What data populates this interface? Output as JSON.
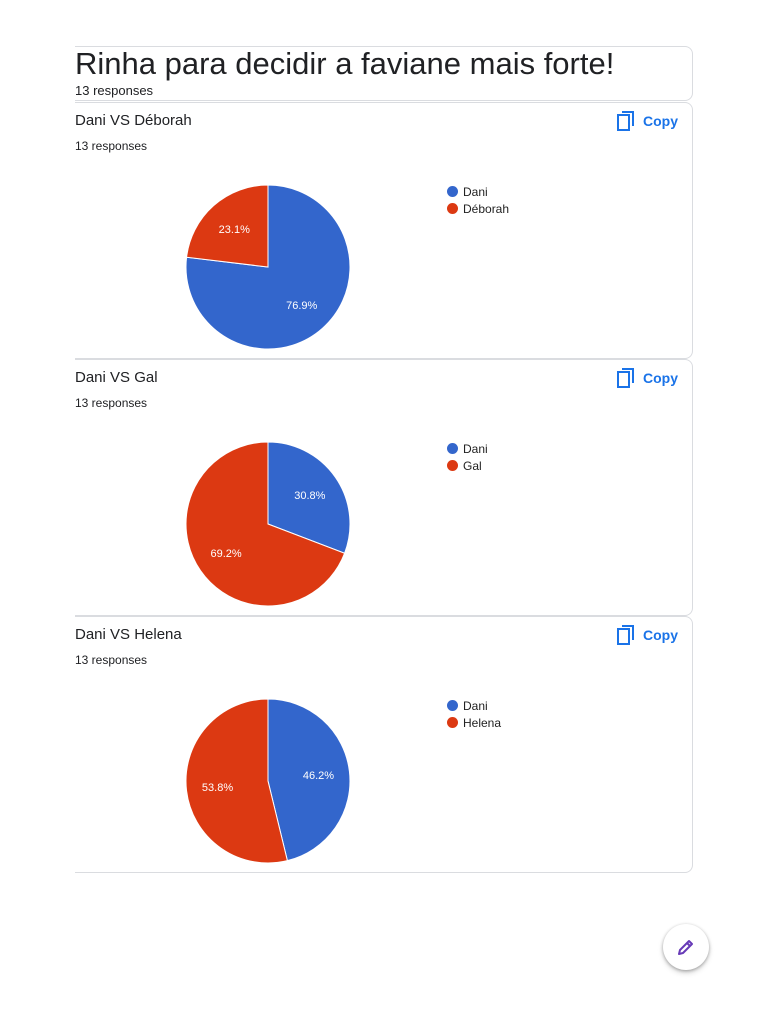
{
  "form": {
    "title": "Rinha para decidir a faviane mais forte!",
    "responses": "13 responses"
  },
  "colors": {
    "blue": "#3366cc",
    "red": "#dc3912",
    "accent": "#1a73e8",
    "fab_icon": "#673ab7"
  },
  "icons": {
    "copy": "copy-icon",
    "edit": "pencil-icon"
  },
  "questions": [
    {
      "title": "Dani VS Déborah",
      "responses": "13 responses",
      "copy_label": "Copy",
      "legend": [
        {
          "label": "Dani",
          "color": "#3366cc"
        },
        {
          "label": "Déborah",
          "color": "#dc3912"
        }
      ]
    },
    {
      "title": "Dani VS Gal",
      "responses": "13 responses",
      "copy_label": "Copy",
      "legend": [
        {
          "label": "Dani",
          "color": "#3366cc"
        },
        {
          "label": "Gal",
          "color": "#dc3912"
        }
      ]
    },
    {
      "title": "Dani VS Helena",
      "responses": "13 responses",
      "copy_label": "Copy",
      "legend": [
        {
          "label": "Dani",
          "color": "#3366cc"
        },
        {
          "label": "Helena",
          "color": "#dc3912"
        }
      ]
    }
  ],
  "chart_data": [
    {
      "type": "pie",
      "title": "Dani VS Déborah",
      "categories": [
        "Dani",
        "Déborah"
      ],
      "values": [
        76.9,
        23.1
      ],
      "labels": [
        "76.9%",
        "23.1%"
      ],
      "colors": [
        "#3366cc",
        "#dc3912"
      ],
      "legend": "right"
    },
    {
      "type": "pie",
      "title": "Dani VS Gal",
      "categories": [
        "Dani",
        "Gal"
      ],
      "values": [
        30.8,
        69.2
      ],
      "labels": [
        "30.8%",
        "69.2%"
      ],
      "colors": [
        "#3366cc",
        "#dc3912"
      ],
      "legend": "right"
    },
    {
      "type": "pie",
      "title": "Dani VS Helena",
      "categories": [
        "Dani",
        "Helena"
      ],
      "values": [
        46.2,
        53.8
      ],
      "labels": [
        "46.2%",
        "53.8%"
      ],
      "colors": [
        "#3366cc",
        "#dc3912"
      ],
      "legend": "right"
    }
  ]
}
